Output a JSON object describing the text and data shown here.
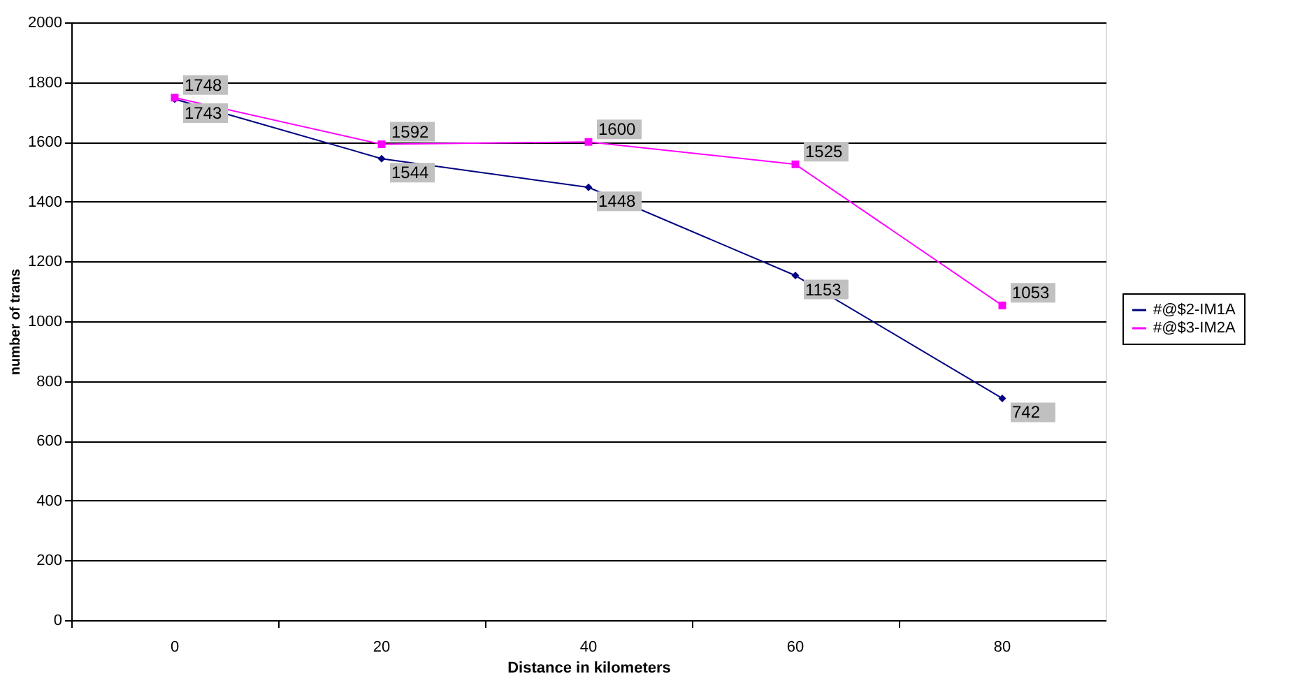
{
  "chart_data": {
    "type": "line",
    "xlabel": "Distance in kilometers",
    "ylabel": "number of trans",
    "categories": [
      "0",
      "20",
      "40",
      "60",
      "80"
    ],
    "series": [
      {
        "name": "#@$2-IM1A",
        "color": "#000080",
        "marker": "diamond",
        "values": [
          1743,
          1544,
          1448,
          1153,
          742
        ]
      },
      {
        "name": "#@$3-IM2A",
        "color": "#ff00ff",
        "marker": "square",
        "values": [
          1748,
          1592,
          1600,
          1525,
          1053
        ]
      }
    ],
    "ylim": [
      0,
      2000
    ],
    "yticks": [
      0,
      200,
      400,
      600,
      800,
      1000,
      1200,
      1400,
      1600,
      1800,
      2000
    ],
    "grid": "y",
    "legend": "right",
    "data_labels": true,
    "line_style": "solid"
  }
}
